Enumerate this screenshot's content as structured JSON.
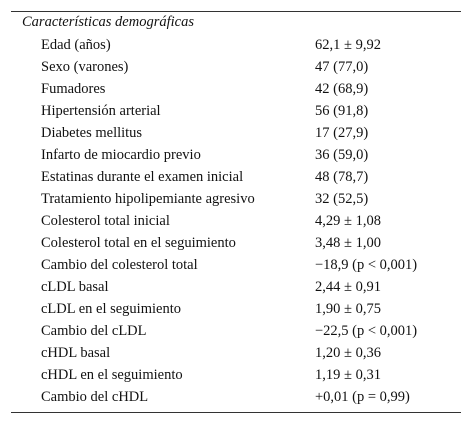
{
  "table": {
    "title": "Características demográficas",
    "rows": [
      [
        "Edad (años)",
        "62,1 ± 9,92"
      ],
      [
        "Sexo (varones)",
        "47 (77,0)"
      ],
      [
        "Fumadores",
        "42 (68,9)"
      ],
      [
        "Hipertensión arterial",
        "56 (91,8)"
      ],
      [
        "Diabetes mellitus",
        "17 (27,9)"
      ],
      [
        "Infarto de miocardio previo",
        "36 (59,0)"
      ],
      [
        "Estatinas durante el examen inicial",
        "48 (78,7)"
      ],
      [
        "Tratamiento hipolipemiante agresivo",
        "32 (52,5)"
      ],
      [
        "Colesterol total inicial",
        "4,29 ± 1,08"
      ],
      [
        "Colesterol total en el seguimiento",
        "3,48 ± 1,00"
      ],
      [
        "Cambio del colesterol total",
        "−18,9 (p < 0,001)"
      ],
      [
        "cLDL basal",
        "2,44 ± 0,91"
      ],
      [
        "cLDL en el seguimiento",
        "1,90 ± 0,75"
      ],
      [
        "Cambio del cLDL",
        "−22,5 (p < 0,001)"
      ],
      [
        "cHDL basal",
        "1,20 ± 0,36"
      ],
      [
        "cHDL en el seguimiento",
        "1,19 ± 0,31"
      ],
      [
        "Cambio del cHDL",
        "+0,01 (p = 0,99)"
      ]
    ]
  }
}
